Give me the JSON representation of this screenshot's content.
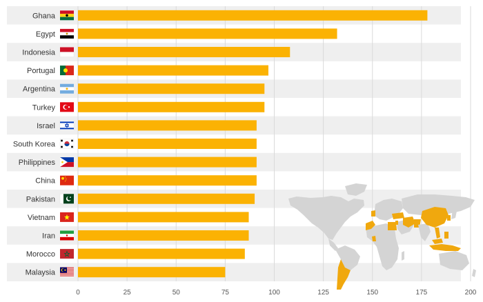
{
  "chart_data": {
    "type": "bar",
    "orientation": "horizontal",
    "categories": [
      "Ghana",
      "Egypt",
      "Indonesia",
      "Portugal",
      "Argentina",
      "Turkey",
      "Israel",
      "South Korea",
      "Philippines",
      "China",
      "Pakistan",
      "Vietnam",
      "Iran",
      "Morocco",
      "Malaysia"
    ],
    "values": [
      178,
      132,
      108,
      97,
      95,
      95,
      91,
      91,
      91,
      91,
      90,
      87,
      87,
      85,
      75
    ],
    "xlim": [
      0,
      200
    ],
    "xticks": [
      "0",
      "25",
      "50",
      "75",
      "100",
      "125",
      "150",
      "175",
      "200"
    ],
    "title": "",
    "xlabel": "",
    "ylabel": "",
    "grid": true,
    "colors": {
      "bar": "#FBB203",
      "row_stripe": "#EFEFEF",
      "grid": "#DADADA",
      "label": "#333333",
      "tick": "#555555",
      "map_land": "#D4D4D4",
      "map_highlight": "#F0A80E"
    },
    "flag_icons": [
      "ghana-flag-icon",
      "egypt-flag-icon",
      "indonesia-flag-icon",
      "portugal-flag-icon",
      "argentina-flag-icon",
      "turkey-flag-icon",
      "israel-flag-icon",
      "south-korea-flag-icon",
      "philippines-flag-icon",
      "china-flag-icon",
      "pakistan-flag-icon",
      "vietnam-flag-icon",
      "iran-flag-icon",
      "morocco-flag-icon",
      "malaysia-flag-icon"
    ]
  }
}
